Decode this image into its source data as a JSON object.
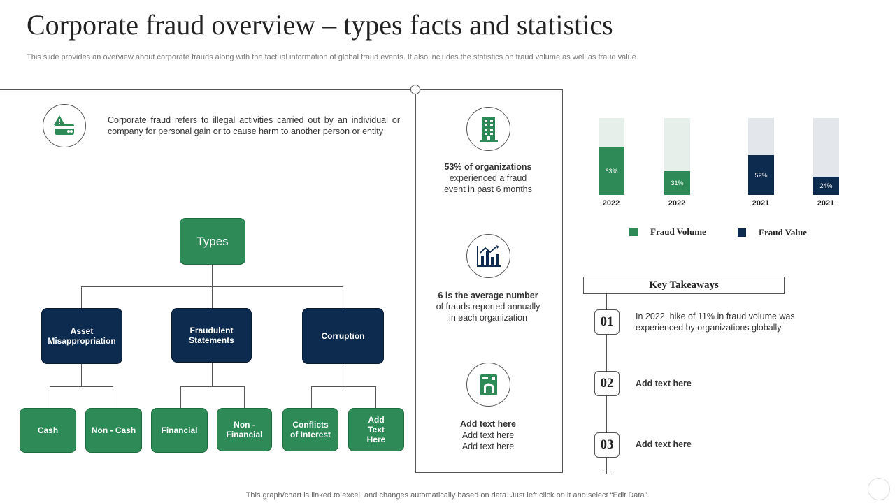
{
  "title": "Corporate fraud overview – types facts and statistics",
  "subtitle": "This slide provides an overview about corporate frauds along with the factual information of global fraud events. It also includes the statistics on fraud volume as well as fraud value.",
  "definition": "Corporate fraud refers to illegal activities carried out by an individual or company for personal gain or to cause harm to another person or entity",
  "tree": {
    "root": "Types",
    "level1": [
      "Asset Misappropriation",
      "Fraudulent Statements",
      "Corruption"
    ],
    "level2": [
      "Cash",
      "Non - Cash",
      "Financial",
      "Non - Financial",
      "Conflicts of Interest",
      "Add Text Here"
    ]
  },
  "stats": [
    {
      "bold": "53% of organizations",
      "text": "experienced a fraud event in past 6 months",
      "icon": "building-icon"
    },
    {
      "bold": "6 is the average number",
      "text": "of frauds reported annually in each organization",
      "icon": "bar-chart-icon"
    },
    {
      "bold": "Add text here",
      "text": "Add text here Add text here",
      "icon": "document-icon"
    }
  ],
  "chart_data": {
    "type": "bar",
    "categories": [
      "2022",
      "2022",
      "2021",
      "2021"
    ],
    "values": [
      63,
      31,
      52,
      24
    ],
    "value_labels": [
      "63%",
      "31%",
      "52%",
      "24%"
    ],
    "series_of_bar": [
      "Fraud Volume",
      "Fraud Volume",
      "Fraud Value",
      "Fraud Value"
    ],
    "ylim": [
      0,
      100
    ],
    "legend": [
      {
        "name": "Fraud Volume",
        "color": "#2e8b57"
      },
      {
        "name": "Fraud Value",
        "color": "#0d2b4e"
      }
    ],
    "legend_position": "bottom"
  },
  "colors": {
    "green": "#2e8b57",
    "navy": "#0d2b4e",
    "green_bg": "#e6efe9",
    "navy_bg": "#e3e6ea"
  },
  "takeaways": {
    "heading": "Key Takeaways",
    "items": [
      {
        "num": "01",
        "text": "In 2022, hike of 11% in fraud volume was experienced by organizations globally"
      },
      {
        "num": "02",
        "text": "Add text here"
      },
      {
        "num": "03",
        "text": "Add text here"
      }
    ]
  },
  "footer": "This graph/chart is linked to excel, and changes automatically based on data. Just left click on it and select “Edit Data”."
}
